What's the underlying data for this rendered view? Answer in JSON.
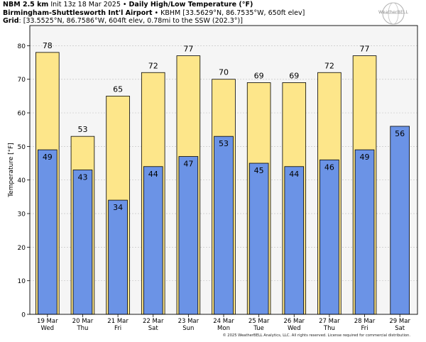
{
  "header": {
    "model": "NBM 2.5 km",
    "init": "Init 13z 18 Mar 2025",
    "bullet": "•",
    "title": "Daily High/Low Temperature (°F)",
    "station_name": "Birmingham-Shuttlesworth Int'l Airport",
    "station_info": "• KBHM [33.5629°N, 86.7535°W, 650ft elev]",
    "grid_label": "Grid",
    "grid_info": ": [33.5525°N, 86.7586°W, 604ft elev, 0.78mi to the SSW (202.3°)]"
  },
  "logo": {
    "text": "WeatherBELL"
  },
  "copyright": "© 2025 WeatherBELL Analytics, LLC. All rights reserved. License required for commercial distribution.",
  "colors": {
    "high": "#fde68a",
    "low": "#6b93e6",
    "plot_bg": "#f5f5f5",
    "grid": "#c8c8c8"
  },
  "chart_data": {
    "type": "bar",
    "ylabel": "Temperature [°F]",
    "ylim": [
      0,
      86
    ],
    "yticks": [
      0,
      10,
      20,
      30,
      40,
      50,
      60,
      70,
      80
    ],
    "grid": true,
    "categories": [
      {
        "date": "19 Mar",
        "day": "Wed"
      },
      {
        "date": "20 Mar",
        "day": "Thu"
      },
      {
        "date": "21 Mar",
        "day": "Fri"
      },
      {
        "date": "22 Mar",
        "day": "Sat"
      },
      {
        "date": "23 Mar",
        "day": "Sun"
      },
      {
        "date": "24 Mar",
        "day": "Mon"
      },
      {
        "date": "25 Mar",
        "day": "Tue"
      },
      {
        "date": "26 Mar",
        "day": "Wed"
      },
      {
        "date": "27 Mar",
        "day": "Thu"
      },
      {
        "date": "28 Mar",
        "day": "Fri"
      },
      {
        "date": "29 Mar",
        "day": "Sat"
      }
    ],
    "series": [
      {
        "name": "High",
        "values": [
          78,
          53,
          65,
          72,
          77,
          70,
          69,
          69,
          72,
          77,
          null
        ]
      },
      {
        "name": "Low",
        "values": [
          49,
          43,
          34,
          44,
          47,
          53,
          45,
          44,
          46,
          49,
          56
        ]
      }
    ]
  }
}
